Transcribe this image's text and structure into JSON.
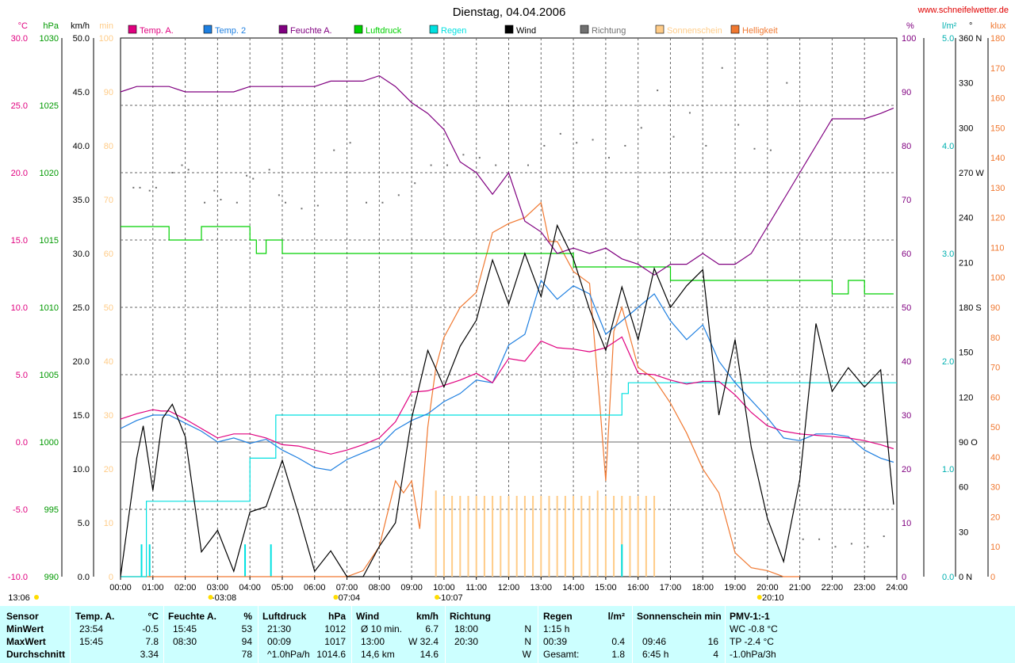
{
  "title": "Dienstag, 04.04.2006",
  "site": "www.schneifelwetter.de",
  "colors": {
    "temp_a": "#e0007f",
    "temp_2": "#1e7fe0",
    "feuchte": "#800080",
    "luftdruck": "#00d000",
    "regen": "#00e0e0",
    "wind": "#000000",
    "richtung": "#707070",
    "sonnenschein": "#ffcc88",
    "helligkeit": "#f07830",
    "stats_bg": "#ccffff"
  },
  "axes_labels": {
    "left": [
      {
        "unit": "°C",
        "ticks": [
          "30.0",
          "25.0",
          "20.0",
          "15.0",
          "10.0",
          "5.0",
          "0.0",
          "-5.0",
          "-10.0"
        ]
      },
      {
        "unit": "hPa",
        "ticks": [
          "1030",
          "1025",
          "1020",
          "1015",
          "1010",
          "1005",
          "1000",
          "995",
          "990"
        ]
      },
      {
        "unit": "km/h",
        "ticks": [
          "50.0",
          "45.0",
          "40.0",
          "35.0",
          "30.0",
          "25.0",
          "20.0",
          "15.0",
          "10.0",
          "5.0",
          "0.0"
        ]
      },
      {
        "unit": "min",
        "ticks": [
          "100",
          "90",
          "80",
          "70",
          "60",
          "50",
          "40",
          "30",
          "20",
          "10",
          "0"
        ]
      }
    ],
    "right": [
      {
        "unit": "%",
        "ticks": [
          "100",
          "90",
          "80",
          "70",
          "60",
          "50",
          "40",
          "30",
          "20",
          "10",
          "0"
        ]
      },
      {
        "unit": "l/m²",
        "ticks": [
          "5.0",
          "4.0",
          "3.0",
          "2.0",
          "1.0",
          "0.0"
        ]
      },
      {
        "unit": "°",
        "ticks": [
          "360 N",
          "330",
          "300",
          "270 W",
          "240",
          "210",
          "180 S",
          "150",
          "120",
          "90 O",
          "60",
          "30",
          "0 N"
        ]
      },
      {
        "unit": "klux",
        "ticks": [
          "180",
          "170",
          "160",
          "150",
          "140",
          "130",
          "120",
          "110",
          "100",
          "90",
          "80",
          "70",
          "60",
          "50",
          "40",
          "30",
          "20",
          "10",
          "0"
        ]
      }
    ]
  },
  "x_ticks": [
    "00:00",
    "01:00",
    "02:00",
    "03:00",
    "04:00",
    "05:00",
    "06:00",
    "07:00",
    "08:00",
    "09:00",
    "10:00",
    "11:00",
    "12:00",
    "13:00",
    "14:00",
    "15:00",
    "16:00",
    "17:00",
    "18:00",
    "19:00",
    "20:00",
    "21:00",
    "22:00",
    "23:00",
    "24:00"
  ],
  "below_axis": [
    {
      "text": "13:06",
      "at": 0.45
    },
    {
      "text": "-03:08",
      "at": 3.2
    },
    {
      "text": "07:04",
      "at": 7.07
    },
    {
      "text": "-10:07",
      "at": 10.2
    },
    {
      "text": "20:10",
      "at": 20.17
    }
  ],
  "chart_data": {
    "type": "line",
    "title": "Dienstag, 04.04.2006",
    "x_unit": "hours",
    "xlim": [
      0,
      24
    ],
    "series": [
      {
        "name": "Temp. A.",
        "unit": "°C",
        "axis_range": [
          -10,
          30
        ],
        "x": [
          0,
          0.5,
          1,
          1.25,
          1.5,
          2,
          2.5,
          3,
          3.5,
          4,
          4.5,
          5,
          5.5,
          6,
          6.5,
          7,
          7.5,
          8,
          8.5,
          9,
          9.5,
          10,
          10.5,
          11,
          11.5,
          12,
          12.5,
          13,
          13.5,
          14,
          14.5,
          15,
          15.5,
          16,
          16.5,
          17,
          17.5,
          18,
          18.5,
          19,
          19.5,
          20,
          20.5,
          21,
          21.5,
          22,
          22.5,
          23,
          23.5,
          23.9
        ],
        "values": [
          1.7,
          2.1,
          2.4,
          2.3,
          2.3,
          1.7,
          1.0,
          0.3,
          0.6,
          0.6,
          0.3,
          -0.2,
          -0.3,
          -0.6,
          -0.9,
          -0.6,
          -0.2,
          0.3,
          1.5,
          3.7,
          3.8,
          4.2,
          4.6,
          5.1,
          4.4,
          6.2,
          6.0,
          7.5,
          7.0,
          6.9,
          6.7,
          7.0,
          7.8,
          5.1,
          5.0,
          4.6,
          4.3,
          4.5,
          4.5,
          3.5,
          2.2,
          1.2,
          0.8,
          0.6,
          0.5,
          0.4,
          0.3,
          0.1,
          -0.2,
          -0.5
        ]
      },
      {
        "name": "Temp. 2",
        "unit": "°C",
        "axis_range": [
          -10,
          30
        ],
        "x": [
          0,
          0.5,
          1,
          1.5,
          2,
          2.5,
          3,
          3.5,
          4,
          4.5,
          5,
          5.5,
          6,
          6.5,
          7,
          7.5,
          8,
          8.5,
          9,
          9.5,
          10,
          10.5,
          11,
          11.5,
          12,
          12.5,
          13,
          13.5,
          14,
          14.5,
          15,
          15.5,
          16,
          16.5,
          17,
          17.5,
          18,
          18.5,
          19,
          19.5,
          20,
          20.5,
          21,
          21.5,
          22,
          22.5,
          23,
          23.5,
          23.9
        ],
        "values": [
          1.0,
          1.6,
          2.0,
          2.0,
          1.4,
          0.8,
          0.0,
          0.3,
          -0.1,
          0.2,
          -0.6,
          -1.2,
          -1.9,
          -2.1,
          -1.3,
          -0.8,
          -0.3,
          0.9,
          1.6,
          2.1,
          3.0,
          3.6,
          4.6,
          4.4,
          7.2,
          8.0,
          12.0,
          10.6,
          11.6,
          11.0,
          8.0,
          9.0,
          10.0,
          11.0,
          9.0,
          7.6,
          8.7,
          6.0,
          4.4,
          3.1,
          1.8,
          0.3,
          0.1,
          0.6,
          0.6,
          0.4,
          -0.6,
          -1.2,
          -1.5
        ]
      },
      {
        "name": "Feuchte A.",
        "unit": "%",
        "axis_range": [
          0,
          100
        ],
        "x": [
          0,
          0.5,
          1,
          1.5,
          2,
          2.5,
          3,
          3.5,
          4,
          4.5,
          5,
          5.5,
          6,
          6.5,
          7,
          7.5,
          8,
          8.5,
          9,
          9.5,
          10,
          10.5,
          11,
          11.5,
          12,
          12.5,
          13,
          13.5,
          14,
          14.5,
          15,
          15.5,
          16,
          16.5,
          17,
          17.5,
          18,
          18.5,
          19,
          19.5,
          20,
          20.5,
          21,
          21.5,
          22,
          22.5,
          23,
          23.5,
          23.9
        ],
        "values": [
          90,
          91,
          91,
          91,
          90,
          90,
          90,
          90,
          91,
          91,
          91,
          91,
          91,
          92,
          92,
          92,
          93,
          91,
          88,
          86,
          83,
          77,
          75,
          71,
          75,
          66,
          64,
          60,
          61,
          60,
          61,
          59,
          58,
          56,
          58,
          58,
          60,
          58,
          58,
          60,
          65,
          70,
          75,
          80,
          85,
          85,
          85,
          86,
          87
        ]
      },
      {
        "name": "Luftdruck",
        "unit": "hPa",
        "axis_range": [
          990,
          1030
        ],
        "x": [
          0,
          1,
          1.5,
          2,
          2.5,
          4,
          4.2,
          4.5,
          5,
          13.5,
          14,
          16,
          17,
          17.5,
          18,
          21,
          22,
          22.5,
          23,
          23.9
        ],
        "values": [
          1016,
          1016,
          1015,
          1015,
          1016,
          1015,
          1014,
          1015,
          1014,
          1014,
          1013,
          1013,
          1012,
          1012,
          1012,
          1012,
          1011,
          1012,
          1011,
          1011
        ]
      },
      {
        "name": "Regen",
        "unit": "l/m²",
        "axis_range": [
          0,
          5
        ],
        "x": [
          0,
          0.8,
          1,
          3.5,
          4,
          4.8,
          5,
          9.5,
          10,
          15.5,
          15.7,
          16,
          24
        ],
        "values": [
          0,
          0.7,
          0.7,
          0.7,
          1.1,
          1.5,
          1.5,
          1.5,
          1.5,
          1.7,
          1.8,
          1.8,
          1.8
        ]
      },
      {
        "name": "Wind",
        "unit": "km/h",
        "axis_range": [
          0,
          50
        ],
        "x": [
          0,
          0.5,
          0.7,
          1,
          1.3,
          1.6,
          2,
          2.5,
          3,
          3.5,
          4,
          4.5,
          5,
          5.5,
          6,
          6.5,
          7,
          7.5,
          8,
          8.5,
          9,
          9.5,
          10,
          10.5,
          11,
          11.5,
          12,
          12.5,
          13,
          13.5,
          14,
          14.5,
          15,
          15.5,
          16,
          16.5,
          17,
          17.5,
          18,
          18.5,
          19,
          19.5,
          20,
          20.5,
          21,
          21.5,
          22,
          22.5,
          23,
          23.5,
          23.9
        ],
        "values": [
          0,
          11,
          14,
          8,
          14.7,
          16,
          13,
          2.3,
          4.3,
          0.5,
          6,
          6.5,
          10.8,
          5.8,
          0.5,
          2.4,
          0,
          0,
          2.8,
          5,
          14.7,
          21,
          17.6,
          21.4,
          23.8,
          29.4,
          25.3,
          30,
          26,
          32.6,
          29.5,
          24.8,
          21,
          26.9,
          22,
          28.6,
          25,
          27,
          28.5,
          15,
          22,
          12,
          5.4,
          1.4,
          9,
          23.5,
          17.2,
          19.4,
          17.6,
          19.2,
          6.7
        ]
      },
      {
        "name": "Richtung",
        "unit": "°",
        "axis_range": [
          0,
          360
        ],
        "x": [
          0.4,
          0.6,
          0.9,
          1.1,
          1.6,
          1.9,
          2.1,
          2.6,
          2.9,
          3.1,
          3.6,
          3.9,
          4.1,
          4.6,
          4.9,
          5.1,
          5.6,
          6.1,
          6.6,
          7.1,
          7.6,
          8.1,
          8.6,
          9.1,
          9.6,
          10.1,
          10.6,
          11.1,
          11.6,
          12.1,
          12.6,
          13.1,
          13.6,
          14.1,
          14.6,
          15.1,
          15.6,
          16.1,
          16.6,
          17.1,
          17.6,
          18.1,
          18.6,
          19.1,
          19.6,
          20.1,
          20.6,
          21.1,
          21.6,
          22.1,
          22.6,
          23.1,
          23.6
        ],
        "values": [
          260,
          260,
          258,
          260,
          270,
          275,
          272,
          250,
          258,
          252,
          250,
          268,
          266,
          272,
          255,
          250,
          246,
          248,
          285,
          290,
          250,
          250,
          255,
          263,
          275,
          275,
          282,
          280,
          275,
          270,
          275,
          288,
          296,
          290,
          292,
          280,
          288,
          300,
          325,
          294,
          310,
          288,
          340,
          302,
          286,
          285,
          330,
          25,
          25,
          20,
          22,
          20,
          27
        ]
      },
      {
        "name": "Sonnenschein",
        "unit": "min",
        "axis_range": [
          0,
          100
        ],
        "x": [
          9.75,
          10,
          10.25,
          10.5,
          10.75,
          11,
          11.25,
          11.5,
          11.75,
          12,
          12.25,
          12.5,
          12.75,
          13,
          13.25,
          13.5,
          13.75,
          14,
          14.25,
          14.5,
          14.75,
          15,
          15.25,
          15.5,
          15.75,
          16,
          16.25,
          16.5
        ],
        "values": [
          16,
          15,
          15,
          15,
          15,
          15,
          15,
          15,
          15,
          15,
          15,
          15,
          15,
          15,
          15,
          15,
          15,
          15,
          15,
          15,
          16,
          15,
          15,
          15,
          15,
          15,
          15,
          15
        ]
      },
      {
        "name": "Helligkeit",
        "unit": "klux",
        "axis_range": [
          0,
          180
        ],
        "x": [
          0,
          7,
          7.5,
          8,
          8.5,
          8.75,
          9,
          9.25,
          9.5,
          9.75,
          10,
          10.5,
          11,
          11.5,
          12,
          12.5,
          13,
          13.25,
          13.5,
          14,
          14.5,
          14.8,
          15,
          15.25,
          15.5,
          16,
          16.5,
          17,
          17.5,
          18,
          18.5,
          19,
          19.5,
          20,
          20.5,
          21
        ],
        "values": [
          0,
          0,
          2,
          10,
          32,
          28,
          32,
          16,
          50,
          70,
          80,
          90,
          95,
          115,
          118,
          120,
          125,
          112,
          112,
          102,
          98,
          60,
          32,
          82,
          90,
          70,
          66,
          58,
          48,
          36,
          28,
          8,
          3,
          2,
          0,
          0
        ]
      }
    ]
  },
  "stats": {
    "header": {
      "sensor": "Sensor",
      "temp": "Temp. A.",
      "temp_unit": "°C",
      "feuchte": "Feuchte A.",
      "feuchte_unit": "%",
      "luftdruck": "Luftdruck",
      "luftdruck_unit": "hPa",
      "wind": "Wind",
      "wind_unit": "km/h",
      "richtung": "Richtung",
      "regen": "Regen",
      "regen_unit": "l/m²",
      "sonnenschein": "Sonnenschein min",
      "pmv": "PMV-1:-1"
    },
    "rows": [
      {
        "label": "MinWert",
        "temp_t": "23:54",
        "temp_v": "-0.5",
        "feuchte_t": "15:45",
        "feuchte_v": "53",
        "luft_t": "21:30",
        "luft_v": "1012",
        "wind_t": "Ø 10 min.",
        "wind_v": "6.7",
        "richt_t": "18:00",
        "richt_v": "N",
        "regen_t": "1:15 h",
        "regen_v": "",
        "sonne_t": "",
        "sonne_v": "",
        "pmv": "WC -0.8 °C"
      },
      {
        "label": "MaxWert",
        "temp_t": "15:45",
        "temp_v": "7.8",
        "feuchte_t": "08:30",
        "feuchte_v": "94",
        "luft_t": "00:09",
        "luft_v": "1017",
        "wind_t": "13:00",
        "wind_v": "W 32.4",
        "richt_t": "20:30",
        "richt_v": "N",
        "regen_t": "00:39",
        "regen_v": "0.4",
        "sonne_t": "09:46",
        "sonne_v": "16",
        "pmv": "TP -2.4 °C"
      },
      {
        "label": "Durchschnitt",
        "temp_t": "",
        "temp_v": "3.34",
        "feuchte_t": "",
        "feuchte_v": "78",
        "luft_t": "^1.0hPa/h",
        "luft_v": "1014.6",
        "wind_t": "14,6 km",
        "wind_v": "14.6",
        "richt_t": "",
        "richt_v": "W",
        "regen_t": "Gesamt:",
        "regen_v": "1.8",
        "sonne_t": "6:45 h",
        "sonne_v": "4",
        "pmv": "-1.0hPa/3h"
      }
    ]
  }
}
